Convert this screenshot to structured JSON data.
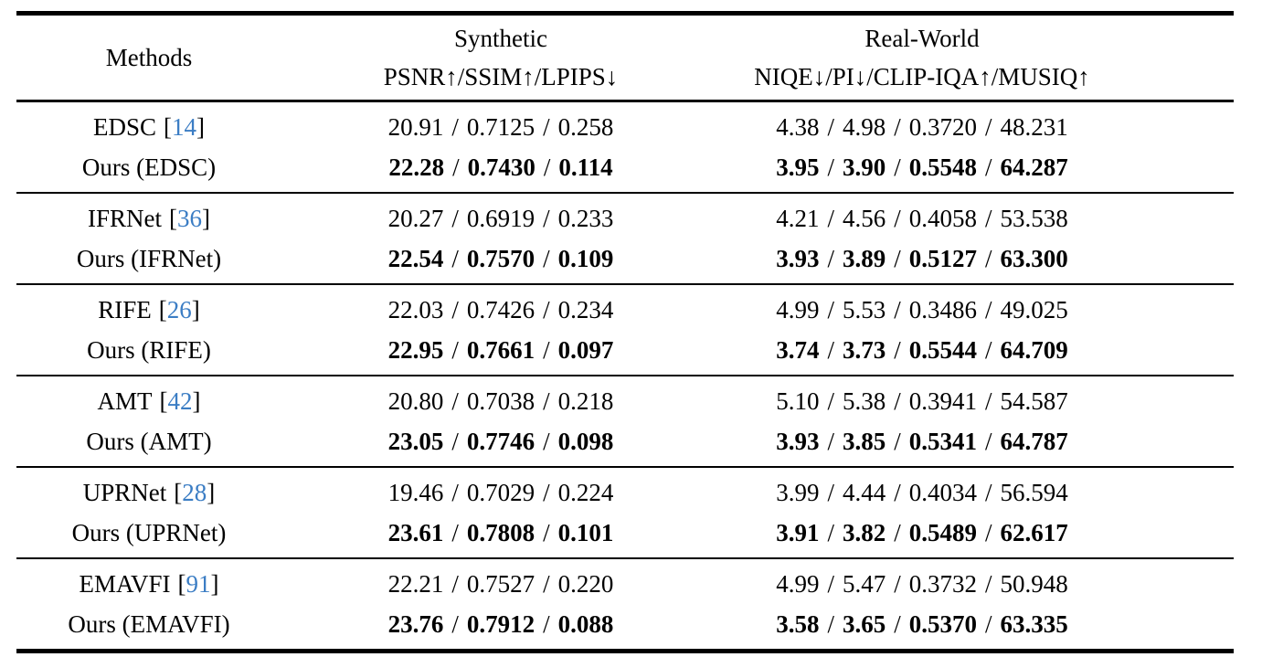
{
  "table": {
    "bracket_open": "[",
    "bracket_close": "]",
    "separator": "/",
    "citation_color": "#3b7dc4",
    "text_color": "#000000",
    "background_color": "#ffffff",
    "header": {
      "methods": "Methods",
      "synthetic": {
        "title": "Synthetic",
        "metrics": "PSNR↑/SSIM↑/LPIPS↓"
      },
      "realworld": {
        "title": "Real-World",
        "metrics": "NIQE↓/PI↓/CLIP-IQA↑/MUSIQ↑"
      }
    },
    "groups": [
      {
        "baseline": {
          "name": "EDSC",
          "cite": "14",
          "synthetic": [
            "20.91",
            "0.7125",
            "0.258"
          ],
          "realworld": [
            "4.38",
            "4.98",
            "0.3720",
            "48.231"
          ]
        },
        "ours": {
          "name": "Ours (EDSC)",
          "synthetic": [
            "22.28",
            "0.7430",
            "0.114"
          ],
          "realworld": [
            "3.95",
            "3.90",
            "0.5548",
            "64.287"
          ]
        }
      },
      {
        "baseline": {
          "name": "IFRNet",
          "cite": "36",
          "synthetic": [
            "20.27",
            "0.6919",
            "0.233"
          ],
          "realworld": [
            "4.21",
            "4.56",
            "0.4058",
            "53.538"
          ]
        },
        "ours": {
          "name": "Ours (IFRNet)",
          "synthetic": [
            "22.54",
            "0.7570",
            "0.109"
          ],
          "realworld": [
            "3.93",
            "3.89",
            "0.5127",
            "63.300"
          ]
        }
      },
      {
        "baseline": {
          "name": "RIFE",
          "cite": "26",
          "synthetic": [
            "22.03",
            "0.7426",
            "0.234"
          ],
          "realworld": [
            "4.99",
            "5.53",
            "0.3486",
            "49.025"
          ]
        },
        "ours": {
          "name": "Ours (RIFE)",
          "synthetic": [
            "22.95",
            "0.7661",
            "0.097"
          ],
          "realworld": [
            "3.74",
            "3.73",
            "0.5544",
            "64.709"
          ]
        }
      },
      {
        "baseline": {
          "name": "AMT",
          "cite": "42",
          "synthetic": [
            "20.80",
            "0.7038",
            "0.218"
          ],
          "realworld": [
            "5.10",
            "5.38",
            "0.3941",
            "54.587"
          ]
        },
        "ours": {
          "name": "Ours (AMT)",
          "synthetic": [
            "23.05",
            "0.7746",
            "0.098"
          ],
          "realworld": [
            "3.93",
            "3.85",
            "0.5341",
            "64.787"
          ]
        }
      },
      {
        "baseline": {
          "name": "UPRNet",
          "cite": "28",
          "synthetic": [
            "19.46",
            "0.7029",
            "0.224"
          ],
          "realworld": [
            "3.99",
            "4.44",
            "0.4034",
            "56.594"
          ]
        },
        "ours": {
          "name": "Ours (UPRNet)",
          "synthetic": [
            "23.61",
            "0.7808",
            "0.101"
          ],
          "realworld": [
            "3.91",
            "3.82",
            "0.5489",
            "62.617"
          ]
        }
      },
      {
        "baseline": {
          "name": "EMAVFI",
          "cite": "91",
          "synthetic": [
            "22.21",
            "0.7527",
            "0.220"
          ],
          "realworld": [
            "4.99",
            "5.47",
            "0.3732",
            "50.948"
          ]
        },
        "ours": {
          "name": "Ours (EMAVFI)",
          "synthetic": [
            "23.76",
            "0.7912",
            "0.088"
          ],
          "realworld": [
            "3.58",
            "3.65",
            "0.5370",
            "63.335"
          ]
        }
      }
    ]
  }
}
